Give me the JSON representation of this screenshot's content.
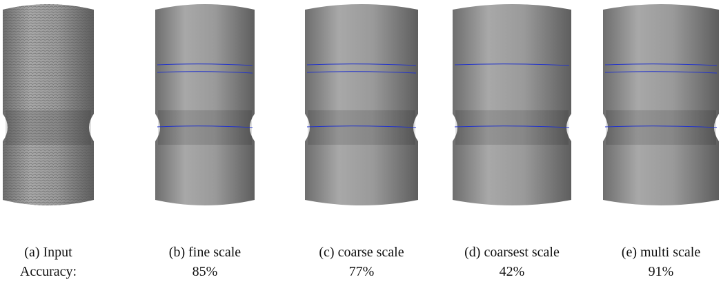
{
  "panels": [
    {
      "caption": "(a) Input",
      "accuracy": "Accuracy:"
    },
    {
      "caption": "(b) fine scale",
      "accuracy": "85%"
    },
    {
      "caption": "(c) coarse scale",
      "accuracy": "77%"
    },
    {
      "caption": "(d) coarsest scale",
      "accuracy": "42%"
    },
    {
      "caption": "(e) multi scale",
      "accuracy": "91%"
    }
  ]
}
